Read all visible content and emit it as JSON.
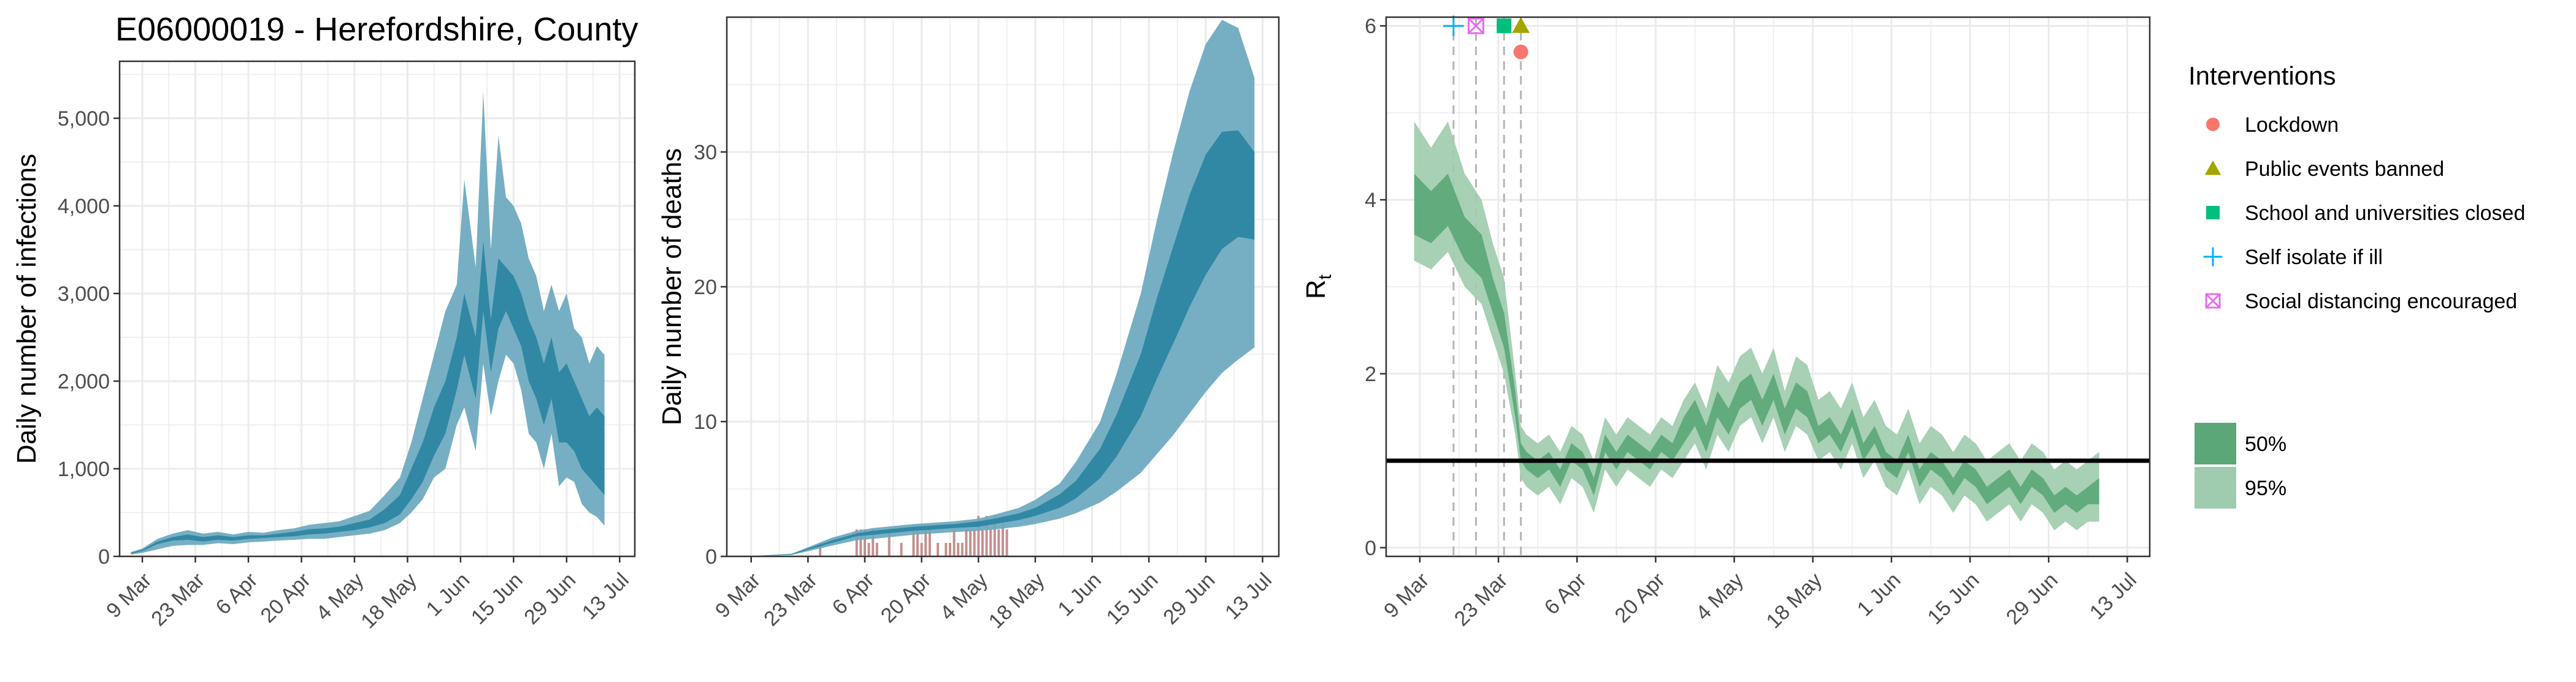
{
  "figure_title": "E06000019 - Herefordshire, County",
  "colors": {
    "band95_blue": "#6aa8be",
    "band50_blue": "#2b84a3",
    "observed_bars": "#c4908f",
    "band95_green": "#9fccae",
    "band50_green": "#5ba778",
    "rt_one_line": "#000000",
    "grid": "#ebebeb",
    "panel_border": "#333333",
    "vline": "#b5b5b5"
  },
  "chart_data": [
    {
      "type": "area",
      "title": "",
      "xlabel": "",
      "ylabel": "Daily number of infections",
      "x_tick_labels": [
        "9 Mar",
        "23 Mar",
        "6 Apr",
        "20 Apr",
        "4 May",
        "18 May",
        "1 Jun",
        "15 Jun",
        "29 Jun",
        "13 Jul"
      ],
      "x_tick_day_numbers": [
        0,
        14,
        28,
        42,
        56,
        70,
        84,
        98,
        112,
        126
      ],
      "xlim_day_numbers": [
        -6,
        130
      ],
      "ylim": [
        0,
        5650
      ],
      "y_ticks": [
        0,
        1000,
        2000,
        3000,
        4000,
        5000
      ],
      "y_tick_labels": [
        "0",
        "1,000",
        "2,000",
        "3,000",
        "4,000",
        "5,000"
      ],
      "x_day_numbers": [
        -3,
        0,
        4,
        8,
        12,
        16,
        20,
        24,
        28,
        32,
        36,
        40,
        44,
        48,
        52,
        56,
        60,
        64,
        68,
        71,
        74,
        77,
        80,
        83,
        85,
        88,
        90,
        92,
        94,
        96,
        98,
        100,
        102,
        104,
        106,
        108,
        110,
        112,
        114,
        116,
        118,
        120,
        122
      ],
      "series": [
        {
          "name": "95%",
          "lower": [
            20,
            40,
            80,
            120,
            130,
            130,
            150,
            140,
            160,
            170,
            180,
            190,
            200,
            200,
            220,
            240,
            260,
            300,
            380,
            500,
            650,
            900,
            1000,
            1500,
            1700,
            1200,
            2200,
            1600,
            2000,
            2300,
            2200,
            1900,
            1400,
            1300,
            1000,
            1400,
            800,
            900,
            850,
            600,
            500,
            450,
            350
          ],
          "upper": [
            50,
            90,
            200,
            260,
            300,
            260,
            280,
            250,
            280,
            270,
            300,
            320,
            360,
            380,
            400,
            460,
            520,
            700,
            900,
            1300,
            1800,
            2300,
            2800,
            3100,
            4300,
            3300,
            5300,
            3500,
            4800,
            4100,
            4000,
            3800,
            3400,
            3200,
            2800,
            3100,
            2800,
            3000,
            2600,
            2500,
            2200,
            2400,
            2300
          ]
        },
        {
          "name": "50%",
          "lower": [
            30,
            60,
            140,
            180,
            190,
            170,
            190,
            180,
            200,
            210,
            220,
            230,
            250,
            260,
            280,
            300,
            330,
            380,
            480,
            650,
            850,
            1150,
            1400,
            1900,
            2300,
            1800,
            2800,
            2100,
            2600,
            2800,
            2600,
            2400,
            2000,
            1800,
            1500,
            1800,
            1300,
            1300,
            1200,
            1000,
            900,
            800,
            700
          ],
          "upper": [
            40,
            75,
            170,
            220,
            250,
            220,
            240,
            220,
            240,
            240,
            260,
            280,
            310,
            320,
            340,
            380,
            420,
            540,
            700,
            1000,
            1300,
            1700,
            2000,
            2500,
            3000,
            2500,
            3600,
            2700,
            3400,
            3300,
            3200,
            3000,
            2700,
            2500,
            2200,
            2500,
            2100,
            2200,
            2000,
            1800,
            1600,
            1700,
            1600
          ]
        }
      ]
    },
    {
      "type": "area",
      "title": "",
      "xlabel": "",
      "ylabel": "Daily number of deaths",
      "x_tick_labels": [
        "9 Mar",
        "23 Mar",
        "6 Apr",
        "20 Apr",
        "4 May",
        "18 May",
        "1 Jun",
        "15 Jun",
        "29 Jun",
        "13 Jul"
      ],
      "x_tick_day_numbers": [
        0,
        14,
        28,
        42,
        56,
        70,
        84,
        98,
        112,
        126
      ],
      "xlim_day_numbers": [
        -6,
        130
      ],
      "ylim": [
        0,
        40
      ],
      "y_ticks": [
        0,
        10,
        20,
        30
      ],
      "y_tick_labels": [
        "0",
        "10",
        "20",
        "30"
      ],
      "x_day_numbers": [
        -1,
        10,
        20,
        26,
        30,
        40,
        50,
        56,
        60,
        66,
        70,
        76,
        80,
        86,
        90,
        96,
        100,
        104,
        108,
        112,
        116,
        120,
        124
      ],
      "series": [
        {
          "name": "95%",
          "lower": [
            0,
            0.1,
            0.8,
            1.2,
            1.3,
            1.6,
            1.8,
            1.9,
            2.0,
            2.2,
            2.4,
            2.8,
            3.2,
            4.0,
            4.8,
            6.2,
            7.6,
            9.0,
            10.6,
            12.2,
            13.6,
            14.6,
            15.5
          ],
          "upper": [
            0,
            0.2,
            1.4,
            1.9,
            2.1,
            2.4,
            2.6,
            2.8,
            3.1,
            3.6,
            4.2,
            5.4,
            7.0,
            10.0,
            13.5,
            19.5,
            25.0,
            30.0,
            34.5,
            38.0,
            39.8,
            39.2,
            35.5
          ]
        },
        {
          "name": "50%",
          "lower": [
            0,
            0.15,
            1.0,
            1.5,
            1.6,
            1.9,
            2.1,
            2.2,
            2.4,
            2.7,
            3.0,
            3.6,
            4.3,
            5.8,
            7.4,
            10.4,
            13.2,
            15.8,
            18.5,
            20.9,
            22.8,
            23.7,
            23.5
          ],
          "upper": [
            0,
            0.18,
            1.2,
            1.7,
            1.9,
            2.2,
            2.4,
            2.6,
            2.8,
            3.2,
            3.6,
            4.6,
            5.6,
            8.0,
            10.5,
            15.0,
            19.2,
            23.0,
            26.8,
            29.8,
            31.5,
            31.6,
            30.0
          ]
        }
      ],
      "observed_day_numbers": [
        17,
        26,
        27,
        28,
        29,
        30,
        31,
        34,
        37,
        40,
        41,
        42,
        43,
        44,
        46,
        48,
        49,
        50,
        51,
        52,
        53,
        54,
        55,
        56,
        57,
        58,
        59,
        60,
        61,
        62,
        63
      ],
      "observed_deaths": [
        1,
        2,
        2,
        2,
        1,
        2,
        1,
        2,
        1,
        2,
        2,
        1,
        2,
        2,
        1,
        1,
        1,
        2,
        1,
        1,
        2,
        2,
        2,
        3,
        2,
        3,
        2,
        3,
        2,
        3,
        2
      ]
    },
    {
      "type": "area",
      "title": "",
      "xlabel": "",
      "ylabel": "R",
      "ylabel_subscript": "t",
      "x_tick_labels": [
        "9 Mar",
        "23 Mar",
        "6 Apr",
        "20 Apr",
        "4 May",
        "18 May",
        "1 Jun",
        "15 Jun",
        "29 Jun",
        "13 Jul"
      ],
      "x_tick_day_numbers": [
        0,
        14,
        28,
        42,
        56,
        70,
        84,
        98,
        112,
        126
      ],
      "xlim_day_numbers": [
        -6,
        130
      ],
      "ylim": [
        -0.1,
        6.1
      ],
      "y_ticks": [
        0,
        2,
        4,
        6
      ],
      "y_tick_labels": [
        "0",
        "2",
        "4",
        "6"
      ],
      "reference_line_y": 1,
      "x_day_numbers": [
        -1,
        2,
        5,
        8,
        11,
        13,
        15,
        17,
        18,
        19,
        21,
        23,
        25,
        27,
        29,
        31,
        33,
        35,
        37,
        39,
        41,
        43,
        45,
        47,
        49,
        51,
        53,
        55,
        57,
        59,
        61,
        63,
        65,
        67,
        69,
        71,
        73,
        75,
        77,
        79,
        81,
        83,
        85,
        87,
        89,
        91,
        93,
        95,
        97,
        99,
        101,
        103,
        105,
        107,
        109,
        111,
        113,
        115,
        117,
        119,
        121
      ],
      "series": [
        {
          "name": "95%",
          "lower": [
            3.3,
            3.2,
            3.4,
            3.0,
            2.8,
            2.4,
            2.0,
            1.3,
            0.8,
            0.7,
            0.6,
            0.7,
            0.5,
            0.8,
            0.7,
            0.4,
            0.9,
            0.7,
            0.9,
            0.8,
            0.7,
            0.9,
            0.8,
            1.0,
            1.2,
            0.9,
            1.3,
            1.1,
            1.4,
            1.5,
            1.2,
            1.5,
            1.1,
            1.4,
            1.3,
            1.0,
            1.1,
            0.9,
            1.2,
            0.8,
            1.0,
            0.7,
            0.6,
            0.9,
            0.5,
            0.7,
            0.6,
            0.4,
            0.6,
            0.5,
            0.3,
            0.4,
            0.5,
            0.3,
            0.5,
            0.4,
            0.2,
            0.3,
            0.2,
            0.3,
            0.3
          ],
          "upper": [
            4.9,
            4.6,
            4.9,
            4.3,
            4.0,
            3.5,
            3.1,
            2.0,
            1.4,
            1.3,
            1.2,
            1.3,
            1.1,
            1.4,
            1.3,
            1.0,
            1.5,
            1.3,
            1.5,
            1.4,
            1.3,
            1.5,
            1.4,
            1.7,
            1.9,
            1.6,
            2.1,
            1.9,
            2.2,
            2.3,
            2.0,
            2.3,
            1.8,
            2.2,
            2.1,
            1.7,
            1.8,
            1.6,
            1.9,
            1.5,
            1.7,
            1.4,
            1.3,
            1.6,
            1.2,
            1.4,
            1.3,
            1.1,
            1.3,
            1.2,
            1.0,
            1.1,
            1.2,
            1.0,
            1.2,
            1.1,
            0.9,
            1.0,
            0.9,
            1.0,
            1.1
          ]
        },
        {
          "name": "50%",
          "lower": [
            3.6,
            3.5,
            3.7,
            3.3,
            3.1,
            2.7,
            2.3,
            1.5,
            1.0,
            0.9,
            0.8,
            0.9,
            0.7,
            1.0,
            0.9,
            0.6,
            1.1,
            0.9,
            1.1,
            1.0,
            0.9,
            1.1,
            1.0,
            1.2,
            1.4,
            1.1,
            1.5,
            1.3,
            1.6,
            1.7,
            1.4,
            1.7,
            1.3,
            1.6,
            1.5,
            1.2,
            1.3,
            1.1,
            1.4,
            1.0,
            1.2,
            0.9,
            0.8,
            1.1,
            0.7,
            0.9,
            0.8,
            0.6,
            0.8,
            0.7,
            0.5,
            0.6,
            0.7,
            0.5,
            0.7,
            0.6,
            0.4,
            0.5,
            0.4,
            0.5,
            0.5
          ],
          "upper": [
            4.3,
            4.1,
            4.3,
            3.8,
            3.6,
            3.1,
            2.7,
            1.8,
            1.2,
            1.1,
            1.0,
            1.1,
            0.9,
            1.2,
            1.1,
            0.8,
            1.3,
            1.1,
            1.3,
            1.2,
            1.1,
            1.3,
            1.2,
            1.5,
            1.7,
            1.4,
            1.8,
            1.6,
            1.9,
            2.0,
            1.7,
            2.0,
            1.6,
            1.9,
            1.8,
            1.4,
            1.5,
            1.3,
            1.6,
            1.2,
            1.4,
            1.1,
            1.0,
            1.3,
            0.9,
            1.1,
            1.0,
            0.8,
            1.0,
            0.9,
            0.7,
            0.8,
            0.9,
            0.7,
            0.9,
            0.8,
            0.6,
            0.7,
            0.6,
            0.7,
            0.8
          ]
        }
      ],
      "interventions": [
        {
          "name": "Self isolate if ill",
          "day_number": 6,
          "y": 6,
          "shape": "plus",
          "color": "#00b0f6"
        },
        {
          "name": "Social distancing encouraged",
          "day_number": 10,
          "y": 6,
          "shape": "square-x",
          "color": "#e76bf3"
        },
        {
          "name": "School and universities closed",
          "day_number": 15,
          "y": 6,
          "shape": "square",
          "color": "#00bf7d"
        },
        {
          "name": "Public events banned",
          "day_number": 18,
          "y": 6,
          "shape": "triangle",
          "color": "#a3a500"
        },
        {
          "name": "Lockdown",
          "day_number": 18,
          "y": 5.7,
          "shape": "circle",
          "color": "#f8766d"
        }
      ]
    }
  ],
  "legend": {
    "title": "Interventions",
    "items": [
      {
        "label": "Lockdown",
        "shape": "circle",
        "color": "#f8766d"
      },
      {
        "label": "Public events banned",
        "shape": "triangle",
        "color": "#a3a500"
      },
      {
        "label": "School and universities closed",
        "shape": "square",
        "color": "#00bf7d"
      },
      {
        "label": "Self isolate if ill",
        "shape": "plus",
        "color": "#00b0f6"
      },
      {
        "label": "Social distancing encouraged",
        "shape": "square-x",
        "color": "#e76bf3"
      }
    ],
    "ci_items": [
      {
        "label": "50%",
        "color": "#5ba778"
      },
      {
        "label": "95%",
        "color": "#9fccae"
      }
    ]
  }
}
